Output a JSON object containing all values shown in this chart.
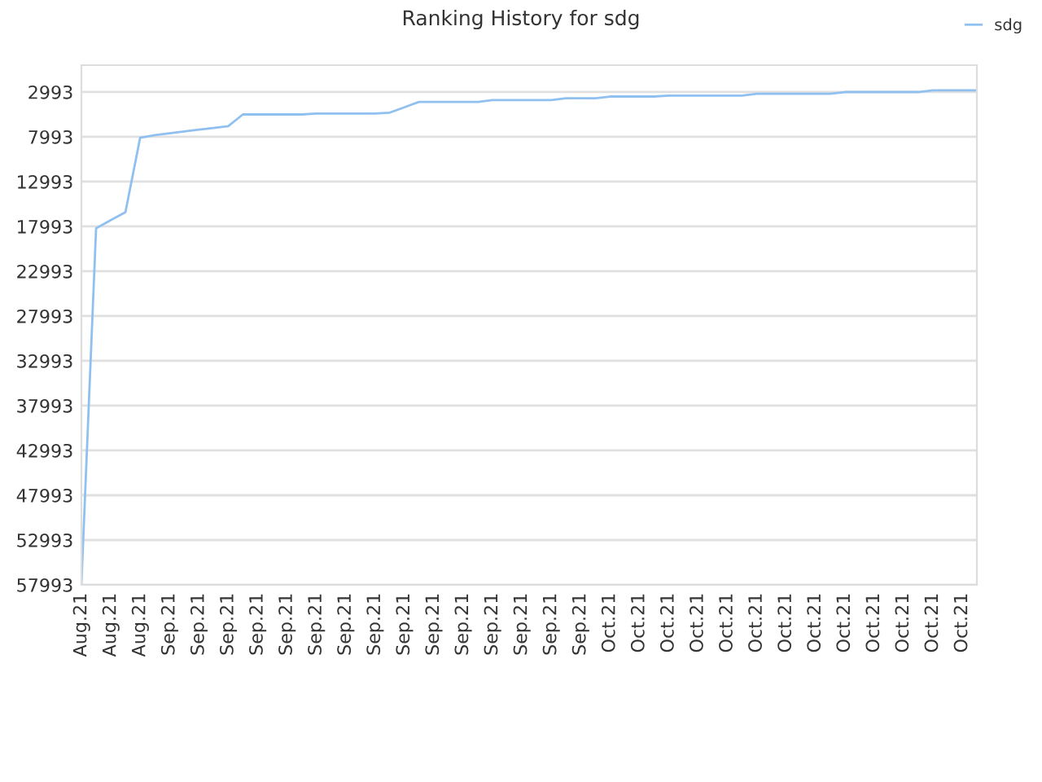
{
  "chart_data": {
    "type": "line",
    "title": "Ranking History for sdg",
    "categories": [
      "Aug.21",
      null,
      "Aug.21",
      null,
      "Aug.21",
      null,
      "Sep.21",
      null,
      "Sep.21",
      null,
      "Sep.21",
      null,
      "Sep.21",
      null,
      "Sep.21",
      null,
      "Sep.21",
      null,
      "Sep.21",
      null,
      "Sep.21",
      null,
      "Sep.21",
      null,
      "Sep.21",
      null,
      "Sep.21",
      null,
      "Sep.21",
      null,
      "Sep.21",
      null,
      "Sep.21",
      null,
      "Sep.21",
      null,
      "Oct.21",
      null,
      "Oct.21",
      null,
      "Oct.21",
      null,
      "Oct.21",
      null,
      "Oct.21",
      null,
      "Oct.21",
      null,
      "Oct.21",
      null,
      "Oct.21",
      null,
      "Oct.21",
      null,
      "Oct.21",
      null,
      "Oct.21",
      null,
      "Oct.21",
      null,
      "Oct.21",
      null
    ],
    "series": [
      {
        "name": "sdg",
        "color": "#90c0f0",
        "values": [
          57900,
          18200,
          17300,
          16400,
          8100,
          7800,
          7600,
          7400,
          7200,
          7000,
          6800,
          5500,
          5500,
          5500,
          5500,
          5500,
          5400,
          5400,
          5400,
          5400,
          5400,
          5300,
          4700,
          4100,
          4100,
          4100,
          4100,
          4100,
          3900,
          3900,
          3900,
          3900,
          3900,
          3700,
          3700,
          3700,
          3500,
          3500,
          3500,
          3500,
          3400,
          3400,
          3400,
          3400,
          3400,
          3400,
          3200,
          3200,
          3200,
          3200,
          3200,
          3200,
          3000,
          3000,
          3000,
          3000,
          3000,
          3000,
          2800,
          2800,
          2800,
          2800
        ]
      }
    ],
    "ylim": [
      57993,
      0
    ],
    "yticks": [
      2993,
      7993,
      12993,
      17993,
      22993,
      27993,
      32993,
      37993,
      42993,
      47993,
      52993,
      57993
    ],
    "grid": "y",
    "legend": "top right",
    "marker": "none",
    "line_style": "solid"
  }
}
